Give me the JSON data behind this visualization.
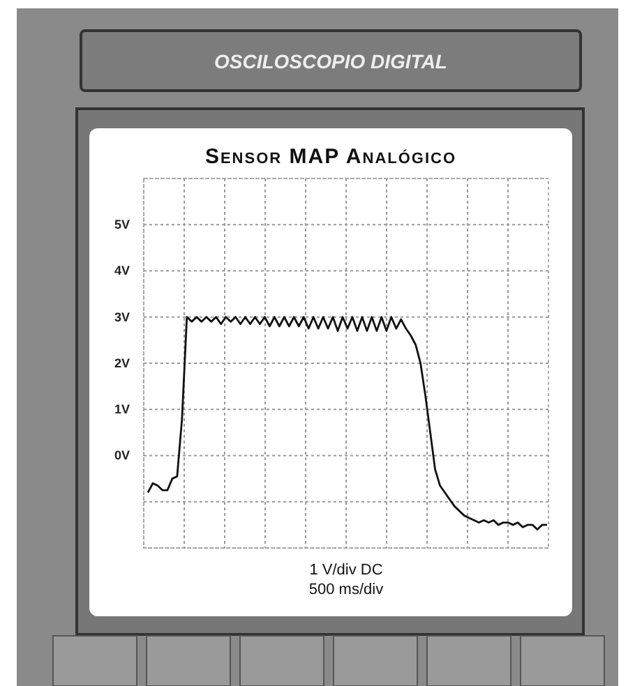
{
  "chart_data": {
    "type": "line",
    "title": "Sensor MAP Analógico",
    "annotations": [
      "OSCILOSCOPIO DIGITAL",
      "1 V/div DC",
      "500 ms/div"
    ],
    "categories": [
      null,
      null,
      null,
      null,
      null,
      null,
      null,
      null,
      null,
      null,
      null,
      null,
      null,
      null,
      null,
      null,
      null,
      null,
      null,
      null,
      null,
      null,
      null,
      null,
      null,
      null,
      null,
      null,
      null,
      null,
      null,
      null,
      null,
      null,
      null,
      null,
      null,
      null,
      null,
      null,
      null,
      null,
      null,
      null,
      null,
      null,
      null,
      null,
      null,
      null,
      null,
      null,
      null,
      null,
      null,
      null,
      null,
      null,
      null,
      null,
      null,
      null,
      null,
      null,
      null,
      null,
      null,
      null,
      null,
      null,
      null,
      null,
      null,
      null,
      null,
      null,
      null,
      null,
      null,
      null,
      null,
      null,
      null
    ],
    "series": [
      {
        "color": "#111111",
        "values": [
          -0.8,
          -0.6,
          -0.65,
          -0.75,
          -0.75,
          -0.5,
          -0.45,
          0.8,
          3.0,
          2.9,
          3.0,
          2.9,
          3.0,
          2.9,
          3.0,
          2.85,
          3.0,
          2.9,
          3.0,
          2.85,
          3.0,
          2.85,
          3.0,
          2.85,
          3.0,
          2.8,
          3.0,
          2.8,
          3.0,
          2.8,
          3.0,
          2.8,
          3.0,
          2.75,
          3.0,
          2.75,
          3.0,
          2.75,
          3.0,
          2.7,
          3.0,
          2.75,
          3.0,
          2.7,
          3.0,
          2.7,
          3.0,
          2.7,
          3.0,
          2.7,
          3.0,
          2.75,
          2.95,
          2.75,
          2.6,
          2.4,
          2.0,
          1.3,
          0.5,
          -0.3,
          -0.65,
          -0.8,
          -0.95,
          -1.1,
          -1.2,
          -1.3,
          -1.35,
          -1.4,
          -1.45,
          -1.4,
          -1.45,
          -1.4,
          -1.5,
          -1.45,
          -1.45,
          -1.5,
          -1.45,
          -1.55,
          -1.5,
          -1.5,
          -1.6,
          -1.5,
          -1.5
        ]
      }
    ],
    "ylim": [
      -2,
      6
    ],
    "yticks": [
      {
        "value": -2,
        "label": null
      },
      {
        "value": -1,
        "label": null
      },
      {
        "value": 0,
        "label": "0V"
      },
      {
        "value": 1,
        "label": "1V"
      },
      {
        "value": 2,
        "label": "2V"
      },
      {
        "value": 3,
        "label": "3V"
      },
      {
        "value": 4,
        "label": "4V"
      },
      {
        "value": 5,
        "label": "5V"
      },
      {
        "value": 6,
        "label": null
      }
    ],
    "grid": true,
    "tick_labels": "y",
    "line_style": "solid",
    "marker": "none"
  }
}
